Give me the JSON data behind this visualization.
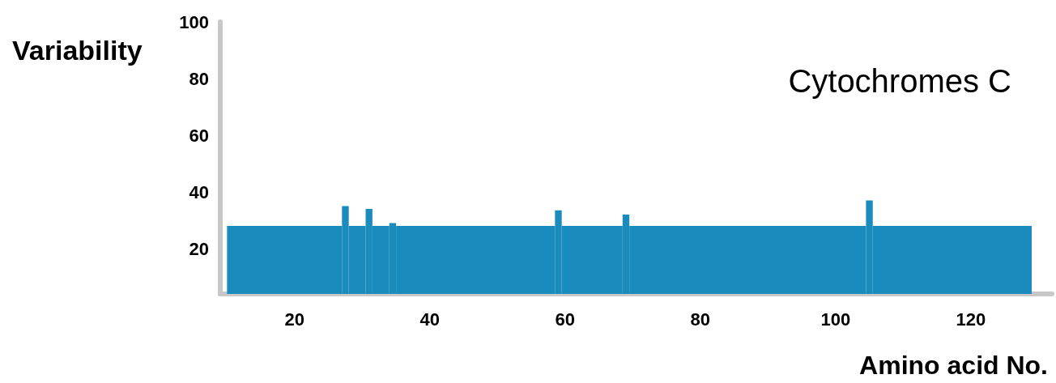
{
  "chart_data": {
    "type": "histogram",
    "title": "Cytochromes C",
    "xlabel": "Amino acid No.",
    "ylabel": "Variability",
    "bins": [
      10,
      27,
      28,
      30.5,
      31.5,
      34,
      35,
      58.5,
      59.5,
      68.5,
      69.5,
      104.5,
      105.5,
      129
    ],
    "values": [
      28,
      35,
      28,
      34,
      28,
      29,
      28,
      33.5,
      28,
      32,
      28,
      37,
      28
    ],
    "color": "#1a8bbd",
    "xlim": [
      9,
      132
    ],
    "xticks": [
      20,
      40,
      60,
      80,
      100,
      120
    ],
    "ylim": [
      4,
      100
    ],
    "yticks": [
      20,
      40,
      60,
      80,
      100
    ],
    "grid": false
  }
}
